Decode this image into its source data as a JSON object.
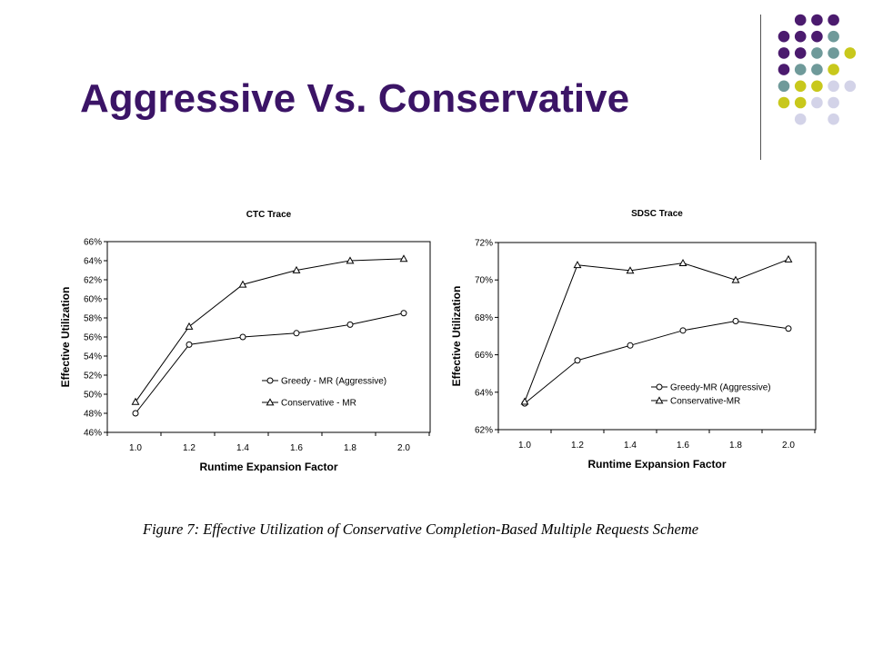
{
  "slide": {
    "title": "Aggressive Vs. Conservative"
  },
  "decor": {
    "colors": {
      "purple": "#4b1b6e",
      "teal": "#6f9a9a",
      "yellow": "#c8c81c",
      "lavender": "#d3d3e8"
    }
  },
  "caption": "Figure 7: Effective Utilization of Conservative Completion-Based Multiple Requests Scheme",
  "chart_data": [
    {
      "type": "line",
      "title": "CTC Trace",
      "xlabel": "Runtime Expansion Factor",
      "ylabel": "Effective Utilization",
      "categories": [
        "1.0",
        "1.2",
        "1.4",
        "1.6",
        "1.8",
        "2.0"
      ],
      "ylim": [
        46,
        66
      ],
      "yticks": [
        "46%",
        "48%",
        "50%",
        "52%",
        "54%",
        "56%",
        "58%",
        "60%",
        "62%",
        "64%",
        "66%"
      ],
      "grid": false,
      "legend_position": "lower-right",
      "series": [
        {
          "name": "Greedy - MR (Aggressive)",
          "marker": "circle",
          "values": [
            48.0,
            55.2,
            56.0,
            56.4,
            57.3,
            58.5
          ]
        },
        {
          "name": "Conservative - MR",
          "marker": "triangle",
          "values": [
            49.2,
            57.1,
            61.5,
            63.0,
            64.0,
            64.2
          ]
        }
      ]
    },
    {
      "type": "line",
      "title": "SDSC Trace",
      "xlabel": "Runtime Expansion Factor",
      "ylabel": "Effective Utilization",
      "categories": [
        "1.0",
        "1.2",
        "1.4",
        "1.6",
        "1.8",
        "2.0"
      ],
      "ylim": [
        62,
        72
      ],
      "yticks": [
        "62%",
        "64%",
        "66%",
        "68%",
        "70%",
        "72%"
      ],
      "grid": false,
      "legend_position": "lower-right",
      "series": [
        {
          "name": "Greedy-MR (Aggressive)",
          "marker": "circle",
          "values": [
            63.4,
            65.7,
            66.5,
            67.3,
            67.8,
            67.4
          ]
        },
        {
          "name": "Conservative-MR",
          "marker": "triangle",
          "values": [
            63.5,
            70.8,
            70.5,
            70.9,
            70.0,
            71.1
          ]
        }
      ]
    }
  ]
}
